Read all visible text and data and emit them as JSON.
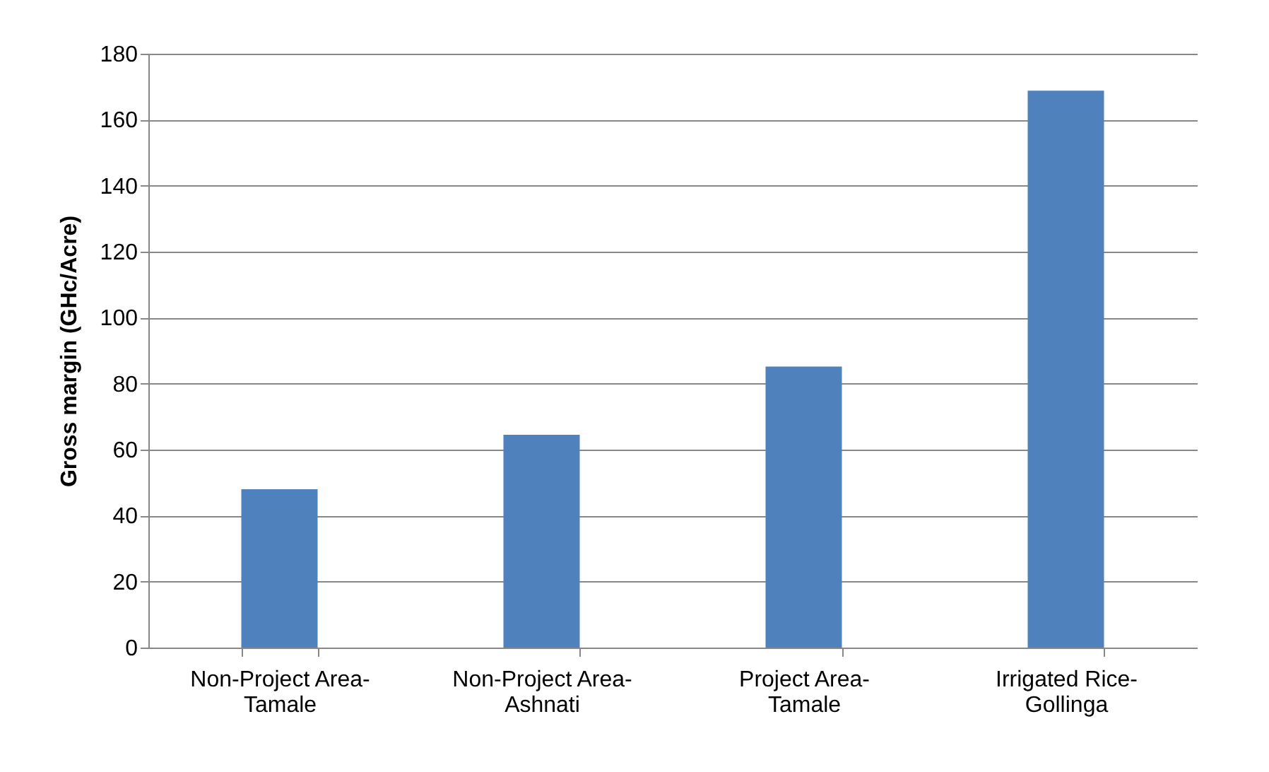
{
  "chart_data": {
    "type": "bar",
    "ylabel": "Gross margin (GHc/Acre)",
    "categories": [
      "Non-Project Area-Tamale",
      "Non-Project Area-Ashnati",
      "Project Area-Tamale",
      "Irrigated Rice-Gollinga"
    ],
    "values": [
      48,
      64.5,
      85.2,
      168.8
    ],
    "color": "#4f81bd",
    "ylim": [
      0,
      180
    ],
    "yticks": [
      0,
      20,
      40,
      60,
      80,
      100,
      120,
      140,
      160,
      180
    ],
    "grid": "y"
  }
}
